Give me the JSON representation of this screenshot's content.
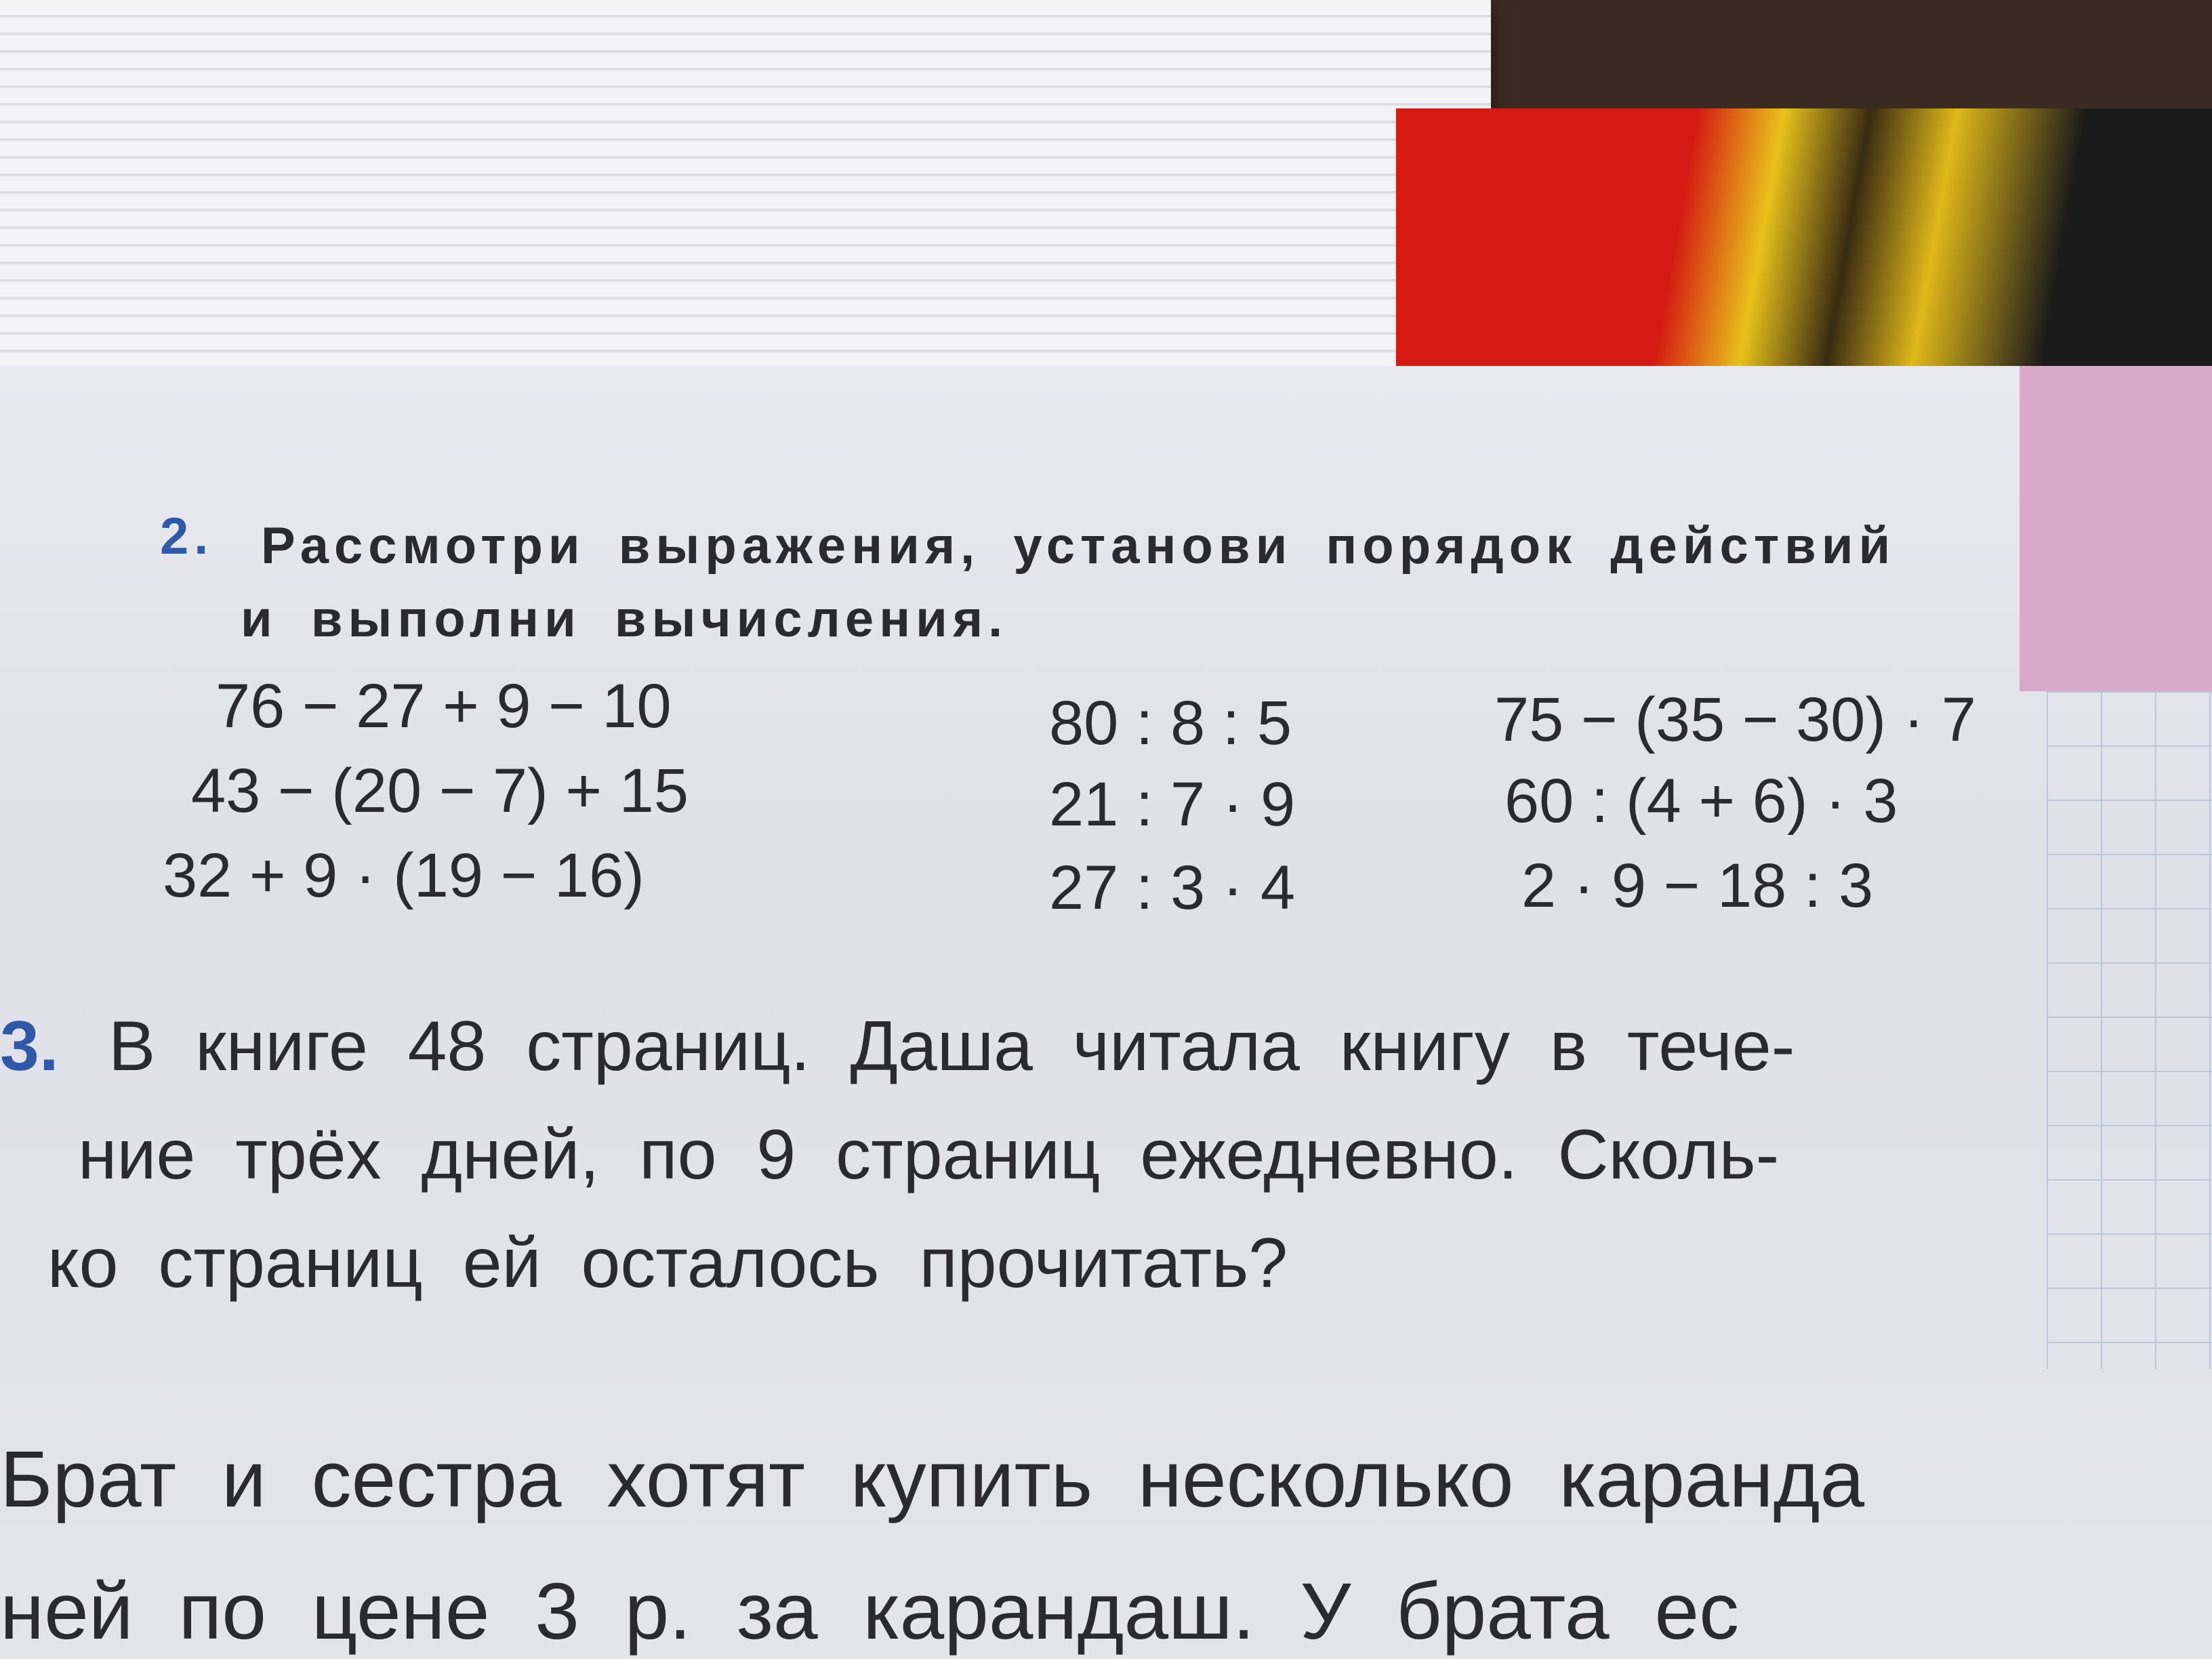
{
  "task2": {
    "number": "2.",
    "instruction_line1": "Рассмотри выражения, установи порядок действий",
    "instruction_line2": "и выполни вычисления.",
    "expressions": [
      [
        "76 − 27 + 9 − 10",
        "80 : 8 : 5",
        "75 − (35 − 30) · 7"
      ],
      [
        "43 − (20 − 7) + 15",
        "21 : 7 · 9",
        "60 : (4 + 6) · 3"
      ],
      [
        "32 + 9 · (19 − 16)",
        "27 : 3 · 4",
        "2 · 9 − 18 : 3"
      ]
    ]
  },
  "task3": {
    "number": "3.",
    "lines": [
      "В книге 48 страниц. Даша читала книгу в тече-",
      "ние трёх дней, по 9 страниц ежедневно. Сколь-",
      "ко страниц ей осталось прочитать?"
    ]
  },
  "task4": {
    "lines": [
      "Брат и сестра хотят купить несколько каранда",
      "ней по цене 3 р. за карандаш. У брата ес"
    ]
  },
  "colors": {
    "task_number": "#2e58a8",
    "text": "#2b2a33",
    "page": "#e4e5ec"
  }
}
